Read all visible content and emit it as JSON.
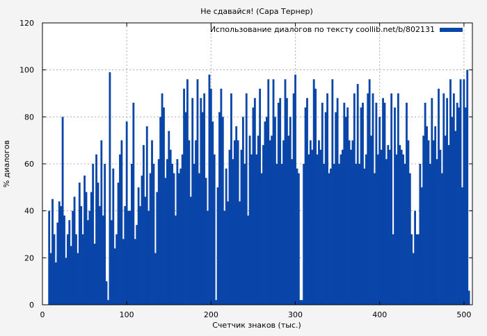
{
  "chart_data": {
    "type": "bar",
    "title": "Не сдавайся! (Сара Тернер)",
    "xlabel": "Счетчик знаков (тыс.)",
    "ylabel": "% диалогов",
    "xlim": [
      0,
      510
    ],
    "ylim": [
      0,
      120
    ],
    "x_ticks": [
      0,
      100,
      200,
      300,
      400,
      500
    ],
    "y_ticks": [
      0,
      20,
      40,
      60,
      80,
      100,
      120
    ],
    "grid": true,
    "legend_position": "top-right",
    "series": [
      {
        "name": "Использование диалогов по тексту coollib.net/b/802131",
        "color": "#0a45a8",
        "x": [
          8,
          10,
          12,
          14,
          16,
          18,
          20,
          22,
          24,
          26,
          28,
          30,
          32,
          34,
          36,
          38,
          40,
          42,
          44,
          46,
          48,
          50,
          52,
          54,
          56,
          58,
          60,
          62,
          64,
          66,
          68,
          70,
          72,
          74,
          76,
          78,
          80,
          82,
          84,
          86,
          88,
          90,
          92,
          94,
          96,
          98,
          100,
          102,
          104,
          106,
          108,
          110,
          112,
          114,
          116,
          118,
          120,
          122,
          124,
          126,
          128,
          130,
          132,
          134,
          136,
          138,
          140,
          142,
          144,
          146,
          148,
          150,
          152,
          154,
          156,
          158,
          160,
          162,
          164,
          166,
          168,
          170,
          172,
          174,
          176,
          178,
          180,
          182,
          184,
          186,
          188,
          190,
          192,
          194,
          196,
          198,
          200,
          202,
          204,
          206,
          208,
          210,
          212,
          214,
          216,
          218,
          220,
          222,
          224,
          226,
          228,
          230,
          232,
          234,
          236,
          238,
          240,
          242,
          244,
          246,
          248,
          250,
          252,
          254,
          256,
          258,
          260,
          262,
          264,
          266,
          268,
          270,
          272,
          274,
          276,
          278,
          280,
          282,
          284,
          286,
          288,
          290,
          292,
          294,
          296,
          298,
          300,
          302,
          304,
          306,
          308,
          310,
          312,
          314,
          316,
          318,
          320,
          322,
          324,
          326,
          328,
          330,
          332,
          334,
          336,
          338,
          340,
          342,
          344,
          346,
          348,
          350,
          352,
          354,
          356,
          358,
          360,
          362,
          364,
          366,
          368,
          370,
          372,
          374,
          376,
          378,
          380,
          382,
          384,
          386,
          388,
          390,
          392,
          394,
          396,
          398,
          400,
          402,
          404,
          406,
          408,
          410,
          412,
          414,
          416,
          418,
          420,
          422,
          424,
          426,
          428,
          430,
          432,
          434,
          436,
          438,
          440,
          442,
          444,
          446,
          448,
          450,
          452,
          454,
          456,
          458,
          460,
          462,
          464,
          466,
          468,
          470,
          472,
          474,
          476,
          478,
          480,
          482,
          484,
          486,
          488,
          490,
          492,
          494,
          496,
          498,
          500,
          502,
          504,
          506
        ],
        "values": [
          40,
          22,
          45,
          30,
          18,
          35,
          44,
          42,
          80,
          38,
          20,
          30,
          36,
          25,
          40,
          46,
          30,
          22,
          52,
          42,
          30,
          55,
          48,
          36,
          40,
          48,
          60,
          26,
          64,
          52,
          42,
          70,
          38,
          60,
          10,
          2,
          99,
          36,
          58,
          24,
          30,
          52,
          64,
          70,
          28,
          42,
          78,
          40,
          40,
          60,
          86,
          28,
          34,
          50,
          42,
          55,
          68,
          46,
          76,
          40,
          56,
          70,
          60,
          22,
          48,
          62,
          80,
          90,
          84,
          54,
          62,
          74,
          66,
          60,
          56,
          38,
          62,
          56,
          58,
          64,
          92,
          82,
          96,
          70,
          46,
          88,
          60,
          70,
          96,
          56,
          88,
          82,
          90,
          54,
          40,
          98,
          92,
          78,
          64,
          2,
          50,
          82,
          92,
          80,
          40,
          58,
          44,
          66,
          90,
          62,
          70,
          76,
          70,
          44,
          66,
          80,
          60,
          90,
          38,
          72,
          64,
          84,
          88,
          64,
          72,
          92,
          56,
          68,
          78,
          80,
          96,
          70,
          72,
          96,
          80,
          60,
          86,
          88,
          60,
          70,
          96,
          88,
          72,
          80,
          62,
          90,
          98,
          58,
          56,
          2,
          2,
          60,
          84,
          88,
          64,
          70,
          66,
          96,
          92,
          64,
          70,
          66,
          86,
          60,
          82,
          90,
          56,
          58,
          96,
          60,
          82,
          88,
          60,
          64,
          66,
          86,
          80,
          84,
          70,
          66,
          70,
          90,
          60,
          94,
          60,
          84,
          86,
          58,
          64,
          90,
          96,
          72,
          90,
          56,
          86,
          64,
          80,
          66,
          88,
          86,
          62,
          68,
          66,
          90,
          30,
          84,
          64,
          90,
          68,
          66,
          64,
          60,
          86,
          70,
          56,
          30,
          22,
          40,
          30,
          30,
          60,
          50,
          72,
          86,
          76,
          70,
          60,
          88,
          70,
          76,
          62,
          92,
          66,
          56,
          90,
          72,
          88,
          68,
          96,
          80,
          90,
          74,
          86,
          84,
          96,
          50,
          96,
          84,
          100,
          6
        ]
      }
    ]
  }
}
